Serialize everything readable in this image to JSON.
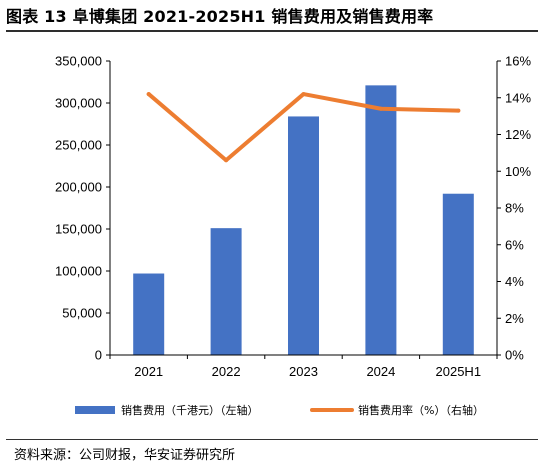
{
  "header": {
    "title": "图表 13 阜博集团 2021-2025H1 销售费用及销售费用率"
  },
  "footer": {
    "source": "资料来源：公司财报，华安证券研究所"
  },
  "chart_data": {
    "type": "bar",
    "title": "图表 13 阜博集团 2021-2025H1 销售费用及销售费用率",
    "categories": [
      "2021",
      "2022",
      "2023",
      "2024",
      "2025H1"
    ],
    "series": [
      {
        "name": "销售费用（千港元）（左轴）",
        "type": "bar",
        "axis": "left",
        "color": "#4472C4",
        "values": [
          97000,
          151000,
          284000,
          321000,
          192000
        ]
      },
      {
        "name": "销售费用率（%）（右轴）",
        "type": "line",
        "axis": "right",
        "color": "#ED7D31",
        "values": [
          14.2,
          10.6,
          14.2,
          13.4,
          13.3
        ]
      }
    ],
    "y_left": {
      "min": 0,
      "max": 350000,
      "step": 50000,
      "ticks": [
        "0",
        "50,000",
        "100,000",
        "150,000",
        "200,000",
        "250,000",
        "300,000",
        "350,000"
      ]
    },
    "y_right": {
      "min": 0,
      "max": 16,
      "step": 2,
      "ticks": [
        "0%",
        "2%",
        "4%",
        "6%",
        "8%",
        "10%",
        "12%",
        "14%",
        "16%"
      ]
    },
    "grid": false,
    "legend": "bottom"
  }
}
